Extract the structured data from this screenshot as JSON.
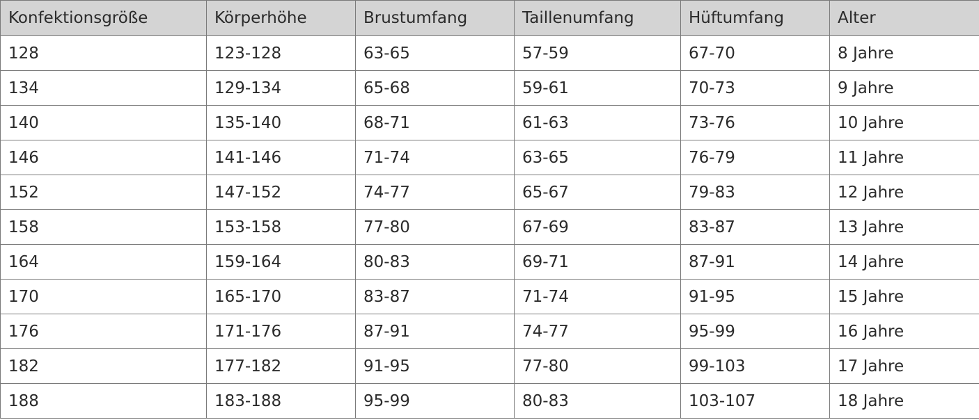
{
  "table": {
    "headers": [
      "Konfektionsgröße",
      "Körperhöhe",
      "Brustumfang",
      "Taillenumfang",
      "Hüftumfang",
      "Alter"
    ],
    "rows": [
      [
        "128",
        "123-128",
        "63-65",
        "57-59",
        "67-70",
        "8 Jahre"
      ],
      [
        "134",
        "129-134",
        "65-68",
        "59-61",
        "70-73",
        "9 Jahre"
      ],
      [
        "140",
        "135-140",
        "68-71",
        "61-63",
        "73-76",
        "10 Jahre"
      ],
      [
        "146",
        "141-146",
        "71-74",
        "63-65",
        "76-79",
        "11 Jahre"
      ],
      [
        "152",
        "147-152",
        "74-77",
        "65-67",
        "79-83",
        "12 Jahre"
      ],
      [
        "158",
        "153-158",
        "77-80",
        "67-69",
        "83-87",
        "13 Jahre"
      ],
      [
        "164",
        "159-164",
        "80-83",
        "69-71",
        "87-91",
        "14 Jahre"
      ],
      [
        "170",
        "165-170",
        "83-87",
        "71-74",
        "91-95",
        "15 Jahre"
      ],
      [
        "176",
        "171-176",
        "87-91",
        "74-77",
        "95-99",
        "16 Jahre"
      ],
      [
        "182",
        "177-182",
        "91-95",
        "77-80",
        "99-103",
        "17 Jahre"
      ],
      [
        "188",
        "183-188",
        "95-99",
        "80-83",
        "103-107",
        "18 Jahre"
      ]
    ],
    "header_bg": "#d4d4d4",
    "border_color": "#7a7a7a"
  }
}
